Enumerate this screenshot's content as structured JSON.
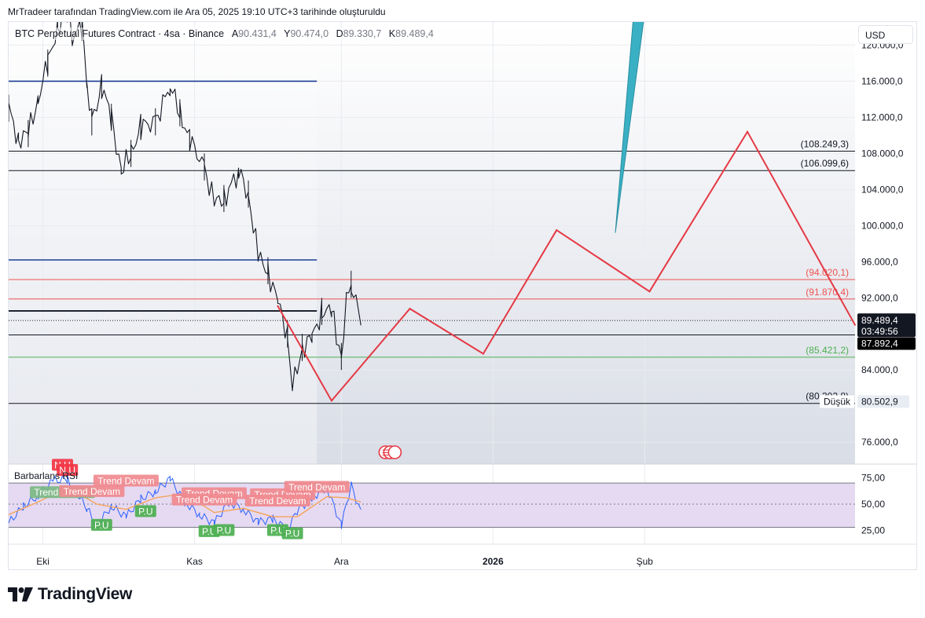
{
  "header": {
    "text": "MrTradeer tarafından TradingView.com ile Ara 05, 2025 19:10 UTC+3 tarihinde oluşturuldu"
  },
  "legend": {
    "symbol": "BTC Perpetual Futures Contract · 4sa · Binance",
    "open_label": "A",
    "open_value": "90.431,4",
    "high_label": "Y",
    "high_value": "90.474,0",
    "low_label": "D",
    "low_value": "89.330,7",
    "close_label": "K",
    "close_value": "89.489,4"
  },
  "currency": "USD",
  "colors": {
    "zigzag": "#e53945",
    "arrow": "#3ab0c4",
    "blue_line": "#1c3f94",
    "red_line": "#ef5350",
    "green_line": "#4caf50",
    "candle": "#131722",
    "rsi_fill": "#e6d9f2",
    "rsi_line": "#2962ff",
    "rsi_ma": "#f5a45a"
  },
  "chart_data": [
    {
      "type": "line",
      "title": "",
      "price_axis": {
        "ticks": [
          {
            "value": 120000,
            "label": "120.000,0"
          },
          {
            "value": 116000,
            "label": "116.000,0"
          },
          {
            "value": 112000,
            "label": "112.000,0"
          },
          {
            "value": 108000,
            "label": "108.000,0"
          },
          {
            "value": 104000,
            "label": "104.000,0"
          },
          {
            "value": 100000,
            "label": "100.000,0"
          },
          {
            "value": 96000,
            "label": "96.000,0"
          },
          {
            "value": 92000,
            "label": "92.000,0"
          },
          {
            "value": 84000,
            "label": "84.000,0"
          },
          {
            "value": 76000,
            "label": "76.000,0"
          }
        ],
        "ylim": [
          73580,
          122560
        ]
      },
      "time_axis": {
        "ticks": [
          {
            "date": "2025-10-01",
            "label": "Eki",
            "bold": false
          },
          {
            "date": "2025-11-01",
            "label": "Kas",
            "bold": false
          },
          {
            "date": "2025-12-01",
            "label": "Ara",
            "bold": false
          },
          {
            "date": "2026-01-01",
            "label": "2026",
            "bold": true
          },
          {
            "date": "2026-02-01",
            "label": "Şub",
            "bold": false
          }
        ],
        "xlim": [
          "2025-09-24",
          "2026-03-16"
        ]
      },
      "price_series": [
        {
          "date": "2025-09-24",
          "price": 113000
        },
        {
          "date": "2025-09-26",
          "price": 109500
        },
        {
          "date": "2025-09-28",
          "price": 110200
        },
        {
          "date": "2025-09-30",
          "price": 114000
        },
        {
          "date": "2025-10-02",
          "price": 118000
        },
        {
          "date": "2025-10-04",
          "price": 122000
        },
        {
          "date": "2025-10-06",
          "price": 124000
        },
        {
          "date": "2025-10-07",
          "price": 121000
        },
        {
          "date": "2025-10-09",
          "price": 122000
        },
        {
          "date": "2025-10-10",
          "price": 116000
        },
        {
          "date": "2025-10-11",
          "price": 111500
        },
        {
          "date": "2025-10-13",
          "price": 115500
        },
        {
          "date": "2025-10-15",
          "price": 112000
        },
        {
          "date": "2025-10-17",
          "price": 106000
        },
        {
          "date": "2025-10-19",
          "price": 108000
        },
        {
          "date": "2025-10-21",
          "price": 111000
        },
        {
          "date": "2025-10-24",
          "price": 111500
        },
        {
          "date": "2025-10-27",
          "price": 115500
        },
        {
          "date": "2025-10-29",
          "price": 112500
        },
        {
          "date": "2025-10-31",
          "price": 109500
        },
        {
          "date": "2025-11-03",
          "price": 106500
        },
        {
          "date": "2025-11-05",
          "price": 102500
        },
        {
          "date": "2025-11-07",
          "price": 103000
        },
        {
          "date": "2025-11-10",
          "price": 106000
        },
        {
          "date": "2025-11-12",
          "price": 103500
        },
        {
          "date": "2025-11-14",
          "price": 96500
        },
        {
          "date": "2025-11-16",
          "price": 95000
        },
        {
          "date": "2025-11-18",
          "price": 91500
        },
        {
          "date": "2025-11-20",
          "price": 88000
        },
        {
          "date": "2025-11-21",
          "price": 82000
        },
        {
          "date": "2025-11-23",
          "price": 86500
        },
        {
          "date": "2025-11-25",
          "price": 87500
        },
        {
          "date": "2025-11-27",
          "price": 90500
        },
        {
          "date": "2025-11-29",
          "price": 90500
        },
        {
          "date": "2025-12-01",
          "price": 85500
        },
        {
          "date": "2025-12-02",
          "price": 91500
        },
        {
          "date": "2025-12-03",
          "price": 93500
        },
        {
          "date": "2025-12-05",
          "price": 89489
        }
      ],
      "horizontal_lines": [
        {
          "price": 116000,
          "color": "#1c3f94",
          "x_end": "2025-11-26",
          "width": 1.6
        },
        {
          "price": 96200,
          "color": "#1c3f94",
          "x_end": "2025-11-26",
          "width": 1.6
        },
        {
          "price": 108249.3,
          "color": "#131722",
          "label": "(108.249,3)",
          "width": 1
        },
        {
          "price": 106099.6,
          "color": "#131722",
          "label": "(106.099,6)",
          "width": 1
        },
        {
          "price": 94020.1,
          "color": "#ef5350",
          "label": "(94.020,1)",
          "width": 1
        },
        {
          "price": 91870.4,
          "color": "#ef5350",
          "label": "(91.870,4)",
          "width": 1
        },
        {
          "price": 90550,
          "color": "#131722",
          "x_end": "2025-11-26",
          "width": 1.8
        },
        {
          "price": 87892.4,
          "color": "#131722",
          "width": 1
        },
        {
          "price": 85421.2,
          "color": "#4caf50",
          "label": "(85.421,2)",
          "width": 1
        },
        {
          "price": 80302.8,
          "color": "#131722",
          "label": "(80.302,8)",
          "width": 1
        }
      ],
      "zigzag_projection": [
        {
          "date": "2025-11-18",
          "price": 91100
        },
        {
          "date": "2025-11-29",
          "price": 80600
        },
        {
          "date": "2025-12-15",
          "price": 90800
        },
        {
          "date": "2025-12-30",
          "price": 85800
        },
        {
          "date": "2026-01-14",
          "price": 99500
        },
        {
          "date": "2026-02-02",
          "price": 92700
        },
        {
          "date": "2026-02-22",
          "price": 110400
        },
        {
          "date": "2026-03-16",
          "price": 89000
        }
      ],
      "arrow_projection": {
        "from": {
          "date": "2026-01-26",
          "price": 99200
        },
        "to": {
          "date": "2026-02-01",
          "price": 123500
        }
      },
      "current_price": {
        "value": "89.489,4",
        "countdown": "03:49:56",
        "price": 89489.4
      },
      "marker_price": {
        "value": "87.892,4",
        "price": 87892.4
      },
      "low_label": {
        "text": "Düşük",
        "value": "80.502,9",
        "price": 80502.9
      }
    },
    {
      "type": "line",
      "title": "Barbarlans RSI",
      "ylim": [
        12,
        88
      ],
      "ticks": [
        {
          "value": 75,
          "label": "75,00"
        },
        {
          "value": 50,
          "label": "50,00"
        },
        {
          "value": 25,
          "label": "25,00"
        }
      ],
      "band": [
        28,
        70
      ],
      "rsi": [
        {
          "date": "2025-09-24",
          "value": 32
        },
        {
          "date": "2025-09-27",
          "value": 48
        },
        {
          "date": "2025-09-30",
          "value": 58
        },
        {
          "date": "2025-10-03",
          "value": 72
        },
        {
          "date": "2025-10-06",
          "value": 74
        },
        {
          "date": "2025-10-08",
          "value": 60
        },
        {
          "date": "2025-10-10",
          "value": 46
        },
        {
          "date": "2025-10-12",
          "value": 30
        },
        {
          "date": "2025-10-15",
          "value": 48
        },
        {
          "date": "2025-10-18",
          "value": 38
        },
        {
          "date": "2025-10-21",
          "value": 55
        },
        {
          "date": "2025-10-24",
          "value": 62
        },
        {
          "date": "2025-10-27",
          "value": 74
        },
        {
          "date": "2025-10-30",
          "value": 52
        },
        {
          "date": "2025-11-02",
          "value": 40
        },
        {
          "date": "2025-11-05",
          "value": 32
        },
        {
          "date": "2025-11-08",
          "value": 52
        },
        {
          "date": "2025-11-11",
          "value": 45
        },
        {
          "date": "2025-11-14",
          "value": 33
        },
        {
          "date": "2025-11-17",
          "value": 36
        },
        {
          "date": "2025-11-20",
          "value": 26
        },
        {
          "date": "2025-11-22",
          "value": 44
        },
        {
          "date": "2025-11-25",
          "value": 56
        },
        {
          "date": "2025-11-28",
          "value": 66
        },
        {
          "date": "2025-12-01",
          "value": 30
        },
        {
          "date": "2025-12-03",
          "value": 68
        },
        {
          "date": "2025-12-05",
          "value": 42
        }
      ],
      "rsi_ma": [
        {
          "date": "2025-09-24",
          "value": 40
        },
        {
          "date": "2025-09-30",
          "value": 52
        },
        {
          "date": "2025-10-06",
          "value": 66
        },
        {
          "date": "2025-10-12",
          "value": 50
        },
        {
          "date": "2025-10-18",
          "value": 45
        },
        {
          "date": "2025-10-24",
          "value": 56
        },
        {
          "date": "2025-10-30",
          "value": 60
        },
        {
          "date": "2025-11-05",
          "value": 42
        },
        {
          "date": "2025-11-11",
          "value": 46
        },
        {
          "date": "2025-11-17",
          "value": 38
        },
        {
          "date": "2025-11-22",
          "value": 38
        },
        {
          "date": "2025-11-28",
          "value": 57
        },
        {
          "date": "2025-12-02",
          "value": 56
        },
        {
          "date": "2025-12-05",
          "value": 52
        }
      ],
      "signals": [
        {
          "text": "N.U",
          "date": "2025-10-05",
          "value": 87,
          "kind": "sell"
        },
        {
          "text": "N.U",
          "date": "2025-10-06",
          "value": 82,
          "kind": "sell"
        },
        {
          "text": "Trend Devam",
          "date": "2025-10-05",
          "value": 61,
          "kind": "buy"
        },
        {
          "text": "Trend Devam",
          "date": "2025-10-11",
          "value": 62,
          "kind": "sell"
        },
        {
          "text": "Trend Devam",
          "date": "2025-10-18",
          "value": 72,
          "kind": "sell"
        },
        {
          "text": "Trend Devam",
          "date": "2025-11-05",
          "value": 60,
          "kind": "sell"
        },
        {
          "text": "Trend Devam",
          "date": "2025-11-03",
          "value": 54,
          "kind": "sell"
        },
        {
          "text": "Trend Devam",
          "date": "2025-11-19",
          "value": 59,
          "kind": "sell"
        },
        {
          "text": "Trend Devam",
          "date": "2025-11-18",
          "value": 53,
          "kind": "sell"
        },
        {
          "text": "Trend Devam",
          "date": "2025-11-26",
          "value": 66,
          "kind": "sell"
        },
        {
          "text": "P.U",
          "date": "2025-10-13",
          "value": 30,
          "kind": "buy"
        },
        {
          "text": "P.U",
          "date": "2025-10-22",
          "value": 43,
          "kind": "buy"
        },
        {
          "text": "P.U",
          "date": "2025-11-04",
          "value": 24,
          "kind": "buy"
        },
        {
          "text": "P.U",
          "date": "2025-11-07",
          "value": 25,
          "kind": "buy"
        },
        {
          "text": "P.U",
          "date": "2025-11-18",
          "value": 25,
          "kind": "buy"
        },
        {
          "text": "P.U",
          "date": "2025-11-21",
          "value": 22,
          "kind": "buy"
        }
      ]
    }
  ],
  "brand": {
    "name": "TradingView",
    "logo_icon": "tradingview-logo-icon"
  }
}
